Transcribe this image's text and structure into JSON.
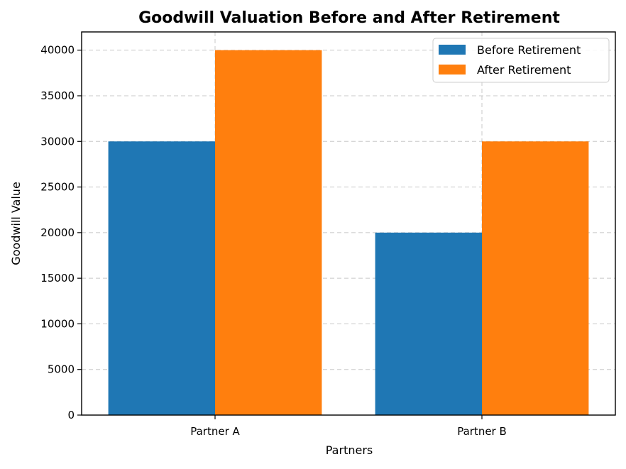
{
  "chart_data": {
    "type": "bar",
    "title": "Goodwill Valuation Before and After Retirement",
    "xlabel": "Partners",
    "ylabel": "Goodwill Value",
    "categories": [
      "Partner A",
      "Partner B"
    ],
    "series": [
      {
        "name": "Before Retirement",
        "values": [
          30000,
          20000
        ],
        "color": "#1f77b4"
      },
      {
        "name": "After Retirement",
        "values": [
          40000,
          30000
        ],
        "color": "#ff7f0e"
      }
    ],
    "ylim": [
      0,
      42000
    ],
    "yticks": [
      0,
      5000,
      10000,
      15000,
      20000,
      25000,
      30000,
      35000,
      40000
    ],
    "ytick_labels": [
      "0",
      "5000",
      "10000",
      "15000",
      "20000",
      "25000",
      "30000",
      "35000",
      "40000"
    ],
    "grid": true,
    "legend_position": "top-right"
  }
}
